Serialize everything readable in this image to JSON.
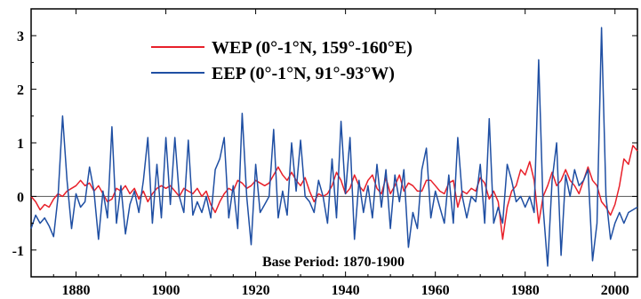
{
  "chart_data": {
    "type": "line",
    "title": "",
    "xlabel": "",
    "ylabel": "",
    "xlim": [
      1870,
      2005
    ],
    "ylim": [
      -1.5,
      3.5
    ],
    "xticks": [
      1880,
      1900,
      1920,
      1940,
      1960,
      1980,
      2000
    ],
    "yticks": [
      -1,
      0,
      1,
      2,
      3
    ],
    "xtick_labels": [
      "1880",
      "1900",
      "1920",
      "1940",
      "1960",
      "1980",
      "2000"
    ],
    "ytick_labels": [
      "-1",
      "0",
      "1",
      "2",
      "3"
    ],
    "zero_line": true,
    "grid": false,
    "legend_position": "top-center",
    "annotation": "Base Period: 1870-1900",
    "series": [
      {
        "name": "WEP (0°-1°N, 159°-160°E)",
        "color": "#e8202a",
        "points": [
          [
            1870,
            0.0
          ],
          [
            1871,
            -0.1
          ],
          [
            1872,
            -0.25
          ],
          [
            1873,
            -0.15
          ],
          [
            1874,
            -0.2
          ],
          [
            1875,
            -0.05
          ],
          [
            1876,
            0.05
          ],
          [
            1877,
            0.0
          ],
          [
            1878,
            0.1
          ],
          [
            1879,
            0.15
          ],
          [
            1880,
            0.2
          ],
          [
            1881,
            0.3
          ],
          [
            1882,
            0.2
          ],
          [
            1883,
            0.25
          ],
          [
            1884,
            0.1
          ],
          [
            1885,
            0.2
          ],
          [
            1886,
            0.05
          ],
          [
            1887,
            -0.1
          ],
          [
            1888,
            -0.05
          ],
          [
            1889,
            0.15
          ],
          [
            1890,
            0.1
          ],
          [
            1891,
            0.2
          ],
          [
            1892,
            0.05
          ],
          [
            1893,
            0.15
          ],
          [
            1894,
            -0.05
          ],
          [
            1895,
            0.1
          ],
          [
            1896,
            -0.1
          ],
          [
            1897,
            0.05
          ],
          [
            1898,
            0.15
          ],
          [
            1899,
            0.2
          ],
          [
            1900,
            0.15
          ],
          [
            1901,
            0.2
          ],
          [
            1902,
            0.1
          ],
          [
            1903,
            0.0
          ],
          [
            1904,
            0.15
          ],
          [
            1905,
            0.1
          ],
          [
            1906,
            0.05
          ],
          [
            1907,
            0.15
          ],
          [
            1908,
            0.0
          ],
          [
            1909,
            0.1
          ],
          [
            1910,
            -0.15
          ],
          [
            1911,
            -0.3
          ],
          [
            1912,
            -0.1
          ],
          [
            1913,
            0.05
          ],
          [
            1914,
            0.15
          ],
          [
            1915,
            0.1
          ],
          [
            1916,
            0.3
          ],
          [
            1917,
            0.25
          ],
          [
            1918,
            0.15
          ],
          [
            1919,
            0.2
          ],
          [
            1920,
            0.3
          ],
          [
            1921,
            0.25
          ],
          [
            1922,
            0.2
          ],
          [
            1923,
            0.25
          ],
          [
            1924,
            0.4
          ],
          [
            1925,
            0.55
          ],
          [
            1926,
            0.4
          ],
          [
            1927,
            0.3
          ],
          [
            1928,
            0.45
          ],
          [
            1929,
            0.3
          ],
          [
            1930,
            0.2
          ],
          [
            1931,
            0.35
          ],
          [
            1932,
            0.1
          ],
          [
            1933,
            -0.1
          ],
          [
            1934,
            0.05
          ],
          [
            1935,
            0.0
          ],
          [
            1936,
            0.05
          ],
          [
            1937,
            0.2
          ],
          [
            1938,
            0.45
          ],
          [
            1939,
            0.3
          ],
          [
            1940,
            0.05
          ],
          [
            1941,
            0.15
          ],
          [
            1942,
            0.4
          ],
          [
            1943,
            0.2
          ],
          [
            1944,
            0.1
          ],
          [
            1945,
            0.3
          ],
          [
            1946,
            0.4
          ],
          [
            1947,
            0.15
          ],
          [
            1948,
            0.05
          ],
          [
            1949,
            0.35
          ],
          [
            1950,
            0.05
          ],
          [
            1951,
            0.2
          ],
          [
            1952,
            0.4
          ],
          [
            1953,
            0.1
          ],
          [
            1954,
            0.25
          ],
          [
            1955,
            0.2
          ],
          [
            1956,
            0.1
          ],
          [
            1957,
            0.1
          ],
          [
            1958,
            0.3
          ],
          [
            1959,
            0.3
          ],
          [
            1960,
            0.2
          ],
          [
            1961,
            0.1
          ],
          [
            1962,
            0.05
          ],
          [
            1963,
            0.25
          ],
          [
            1964,
            0.3
          ],
          [
            1965,
            -0.2
          ],
          [
            1966,
            0.1
          ],
          [
            1967,
            0.05
          ],
          [
            1968,
            0.15
          ],
          [
            1969,
            0.1
          ],
          [
            1970,
            0.35
          ],
          [
            1971,
            0.25
          ],
          [
            1972,
            -0.05
          ],
          [
            1973,
            0.1
          ],
          [
            1974,
            -0.1
          ],
          [
            1975,
            -0.8
          ],
          [
            1976,
            -0.2
          ],
          [
            1977,
            0.1
          ],
          [
            1978,
            0.2
          ],
          [
            1979,
            0.5
          ],
          [
            1980,
            0.4
          ],
          [
            1981,
            0.65
          ],
          [
            1982,
            0.3
          ],
          [
            1983,
            -0.5
          ],
          [
            1984,
            0.0
          ],
          [
            1985,
            0.2
          ],
          [
            1986,
            0.45
          ],
          [
            1987,
            0.2
          ],
          [
            1988,
            0.3
          ],
          [
            1989,
            0.5
          ],
          [
            1990,
            0.3
          ],
          [
            1991,
            0.2
          ],
          [
            1992,
            0.05
          ],
          [
            1993,
            0.3
          ],
          [
            1994,
            0.55
          ],
          [
            1995,
            0.3
          ],
          [
            1996,
            0.2
          ],
          [
            1997,
            -0.1
          ],
          [
            1998,
            -0.2
          ],
          [
            1999,
            -0.35
          ],
          [
            2000,
            -0.15
          ],
          [
            2001,
            0.2
          ],
          [
            2002,
            0.7
          ],
          [
            2003,
            0.6
          ],
          [
            2004,
            0.95
          ],
          [
            2005,
            0.85
          ]
        ]
      },
      {
        "name": "EEP (0°-1°N, 91°-93°W)",
        "color": "#1f4fa3",
        "points": [
          [
            1870,
            -0.6
          ],
          [
            1871,
            -0.35
          ],
          [
            1872,
            -0.5
          ],
          [
            1873,
            -0.4
          ],
          [
            1874,
            -0.55
          ],
          [
            1875,
            -0.75
          ],
          [
            1876,
            0.0
          ],
          [
            1877,
            1.5
          ],
          [
            1878,
            0.3
          ],
          [
            1879,
            -0.6
          ],
          [
            1880,
            0.05
          ],
          [
            1881,
            -0.2
          ],
          [
            1882,
            -0.1
          ],
          [
            1883,
            0.55
          ],
          [
            1884,
            0.1
          ],
          [
            1885,
            -0.8
          ],
          [
            1886,
            0.1
          ],
          [
            1887,
            -0.4
          ],
          [
            1888,
            1.3
          ],
          [
            1889,
            -0.5
          ],
          [
            1890,
            0.2
          ],
          [
            1891,
            -0.7
          ],
          [
            1892,
            -0.15
          ],
          [
            1893,
            0.1
          ],
          [
            1894,
            -0.3
          ],
          [
            1895,
            0.3
          ],
          [
            1896,
            1.1
          ],
          [
            1897,
            -0.5
          ],
          [
            1898,
            0.6
          ],
          [
            1899,
            -0.4
          ],
          [
            1900,
            1.1
          ],
          [
            1901,
            -0.15
          ],
          [
            1902,
            1.1
          ],
          [
            1903,
            0.0
          ],
          [
            1904,
            -0.3
          ],
          [
            1905,
            1.05
          ],
          [
            1906,
            -0.35
          ],
          [
            1907,
            -0.1
          ],
          [
            1908,
            -0.3
          ],
          [
            1909,
            0.0
          ],
          [
            1910,
            -0.4
          ],
          [
            1911,
            0.5
          ],
          [
            1912,
            0.7
          ],
          [
            1913,
            1.1
          ],
          [
            1914,
            -0.4
          ],
          [
            1915,
            0.2
          ],
          [
            1916,
            -0.6
          ],
          [
            1917,
            1.55
          ],
          [
            1918,
            0.0
          ],
          [
            1919,
            -0.9
          ],
          [
            1920,
            0.6
          ],
          [
            1921,
            -0.3
          ],
          [
            1922,
            -0.15
          ],
          [
            1923,
            0.0
          ],
          [
            1924,
            1.25
          ],
          [
            1925,
            -0.4
          ],
          [
            1926,
            0.1
          ],
          [
            1927,
            -0.35
          ],
          [
            1928,
            1.0
          ],
          [
            1929,
            0.1
          ],
          [
            1930,
            1.05
          ],
          [
            1931,
            0.0
          ],
          [
            1932,
            -0.1
          ],
          [
            1933,
            -0.3
          ],
          [
            1934,
            0.3
          ],
          [
            1935,
            0.0
          ],
          [
            1936,
            -0.5
          ],
          [
            1937,
            0.7
          ],
          [
            1938,
            -0.4
          ],
          [
            1939,
            1.4
          ],
          [
            1940,
            0.05
          ],
          [
            1941,
            1.1
          ],
          [
            1942,
            -0.8
          ],
          [
            1943,
            0.3
          ],
          [
            1944,
            -0.3
          ],
          [
            1945,
            0.2
          ],
          [
            1946,
            -0.4
          ],
          [
            1947,
            0.6
          ],
          [
            1948,
            -0.2
          ],
          [
            1949,
            0.5
          ],
          [
            1950,
            -0.6
          ],
          [
            1951,
            0.4
          ],
          [
            1952,
            -0.1
          ],
          [
            1953,
            0.5
          ],
          [
            1954,
            -0.95
          ],
          [
            1955,
            -0.3
          ],
          [
            1956,
            -0.6
          ],
          [
            1957,
            0.5
          ],
          [
            1958,
            0.9
          ],
          [
            1959,
            -0.4
          ],
          [
            1960,
            0.1
          ],
          [
            1961,
            -0.2
          ],
          [
            1962,
            -0.5
          ],
          [
            1963,
            0.4
          ],
          [
            1964,
            -0.5
          ],
          [
            1965,
            1.1
          ],
          [
            1966,
            0.0
          ],
          [
            1967,
            -0.4
          ],
          [
            1968,
            0.0
          ],
          [
            1969,
            -0.1
          ],
          [
            1970,
            0.6
          ],
          [
            1971,
            -0.5
          ],
          [
            1972,
            1.45
          ],
          [
            1973,
            -0.5
          ],
          [
            1974,
            -0.2
          ],
          [
            1975,
            -0.5
          ],
          [
            1976,
            0.6
          ],
          [
            1977,
            0.3
          ],
          [
            1978,
            -0.1
          ],
          [
            1979,
            0.0
          ],
          [
            1980,
            -0.2
          ],
          [
            1981,
            0.0
          ],
          [
            1982,
            -0.3
          ],
          [
            1983,
            2.55
          ],
          [
            1984,
            -0.2
          ],
          [
            1985,
            -1.3
          ],
          [
            1986,
            0.3
          ],
          [
            1987,
            1.0
          ],
          [
            1988,
            -1.1
          ],
          [
            1989,
            0.4
          ],
          [
            1990,
            0.0
          ],
          [
            1991,
            0.5
          ],
          [
            1992,
            0.2
          ],
          [
            1993,
            0.3
          ],
          [
            1994,
            0.5
          ],
          [
            1995,
            -1.2
          ],
          [
            1996,
            -0.5
          ],
          [
            1997,
            3.15
          ],
          [
            1998,
            0.0
          ],
          [
            1999,
            -0.8
          ],
          [
            2000,
            -0.5
          ],
          [
            2001,
            -0.3
          ],
          [
            2002,
            -0.5
          ],
          [
            2003,
            -0.3
          ],
          [
            2004,
            -0.25
          ],
          [
            2005,
            -0.2
          ]
        ]
      }
    ]
  }
}
